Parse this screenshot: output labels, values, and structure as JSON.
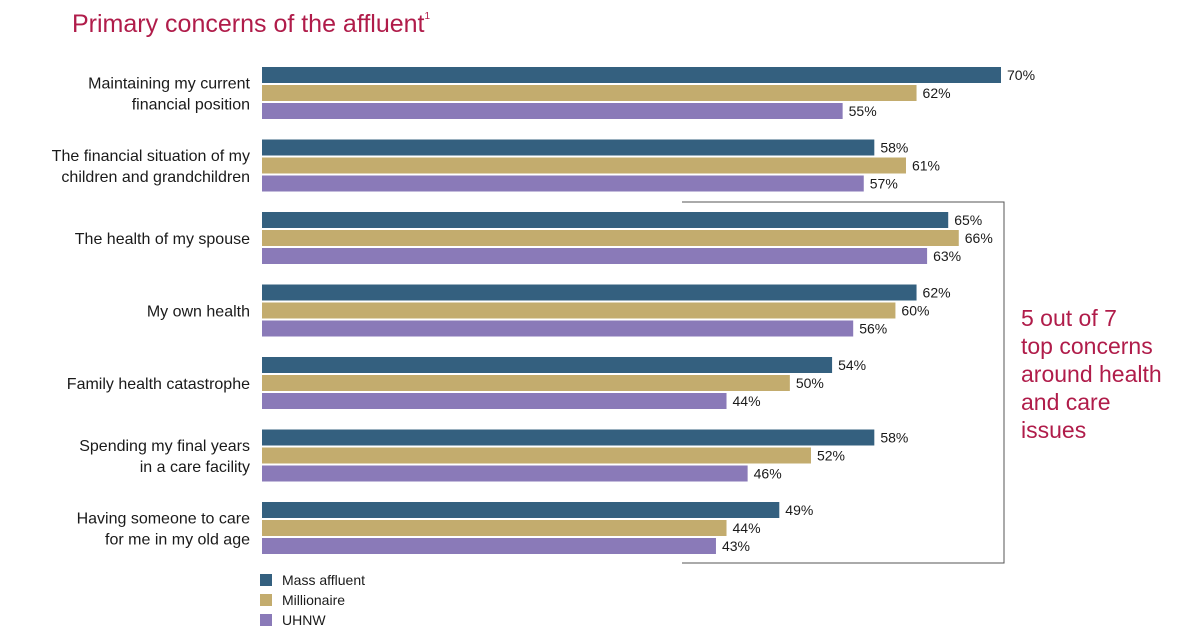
{
  "title": "Primary concerns of the affluent",
  "title_footnote": "1",
  "callout": {
    "lines": [
      "5 out of 7",
      "top concerns",
      "around health",
      "and care",
      "issues"
    ],
    "color": "#b01c4a"
  },
  "chart_data": {
    "type": "bar",
    "orientation": "horizontal",
    "categories": [
      [
        "Maintaining my current",
        "financial position"
      ],
      [
        "The financial situation of my",
        "children and grandchildren"
      ],
      [
        "The health of my spouse"
      ],
      [
        "My own health"
      ],
      [
        "Family health catastrophe"
      ],
      [
        "Spending my final years",
        "in a care facility"
      ],
      [
        "Having someone to care",
        "for me in my old age"
      ]
    ],
    "series": [
      {
        "name": "Mass affluent",
        "color": "#34607f",
        "values": [
          70,
          58,
          65,
          62,
          54,
          58,
          49
        ]
      },
      {
        "name": "Millionaire",
        "color": "#c3ac6e",
        "values": [
          62,
          61,
          66,
          60,
          50,
          52,
          44
        ]
      },
      {
        "name": "UHNW",
        "color": "#8a7ab8",
        "values": [
          55,
          57,
          63,
          56,
          44,
          46,
          43
        ]
      }
    ],
    "value_suffix": "%",
    "xlim": [
      0,
      70
    ],
    "grid": false,
    "legend_position": "bottom-left",
    "highlight_categories": [
      2,
      6
    ]
  }
}
